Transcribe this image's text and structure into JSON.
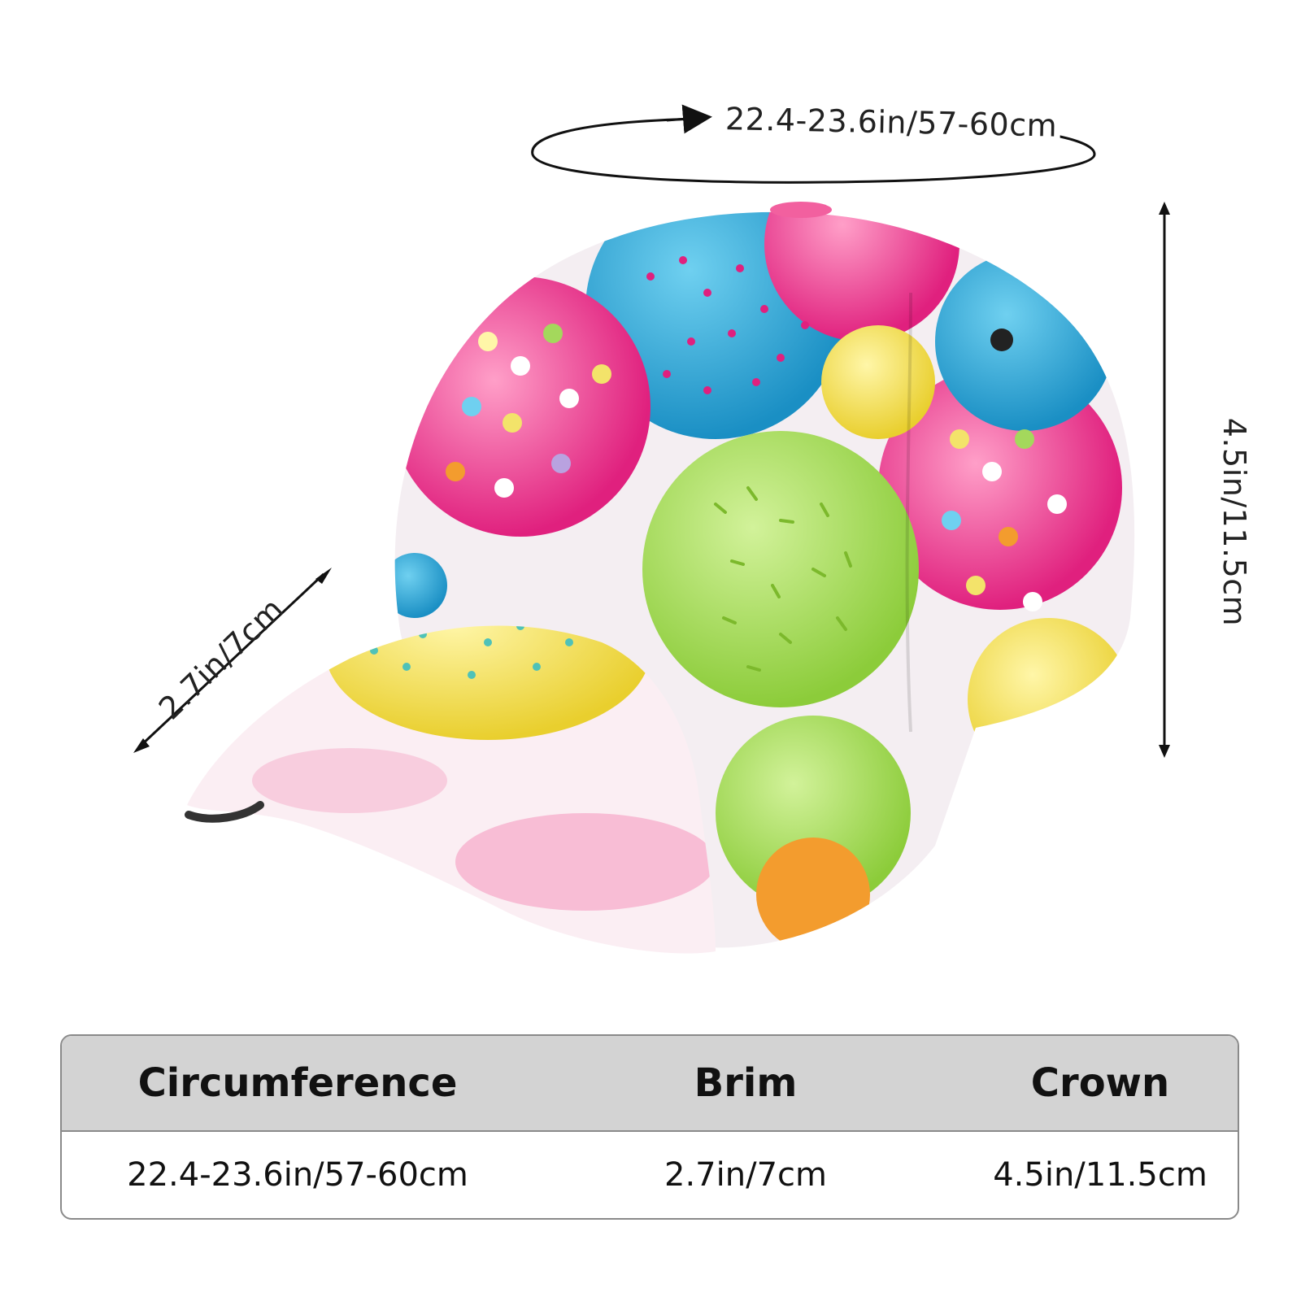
{
  "dimensions": {
    "circumference_label": "22.4-23.6in/57-60cm",
    "crown_label": "4.5in/11.5cm",
    "brim_label": "2.7in/7cm"
  },
  "product": {
    "item": "baseball cap",
    "print_theme": "colorful cake pops with sprinkles",
    "colors": {
      "pink": "#f2609f",
      "blue": "#2aa8d8",
      "green": "#a4d85c",
      "yellow": "#f3e36a",
      "magenta": "#e0207e"
    }
  },
  "size_table": {
    "headers": [
      "Circumference",
      "Brim",
      "Crown"
    ],
    "values": [
      "22.4-23.6in/57-60cm",
      "2.7in/7cm",
      "4.5in/11.5cm"
    ],
    "header_bg": "#d3d3d3",
    "border_color": "#8a8a8a"
  }
}
